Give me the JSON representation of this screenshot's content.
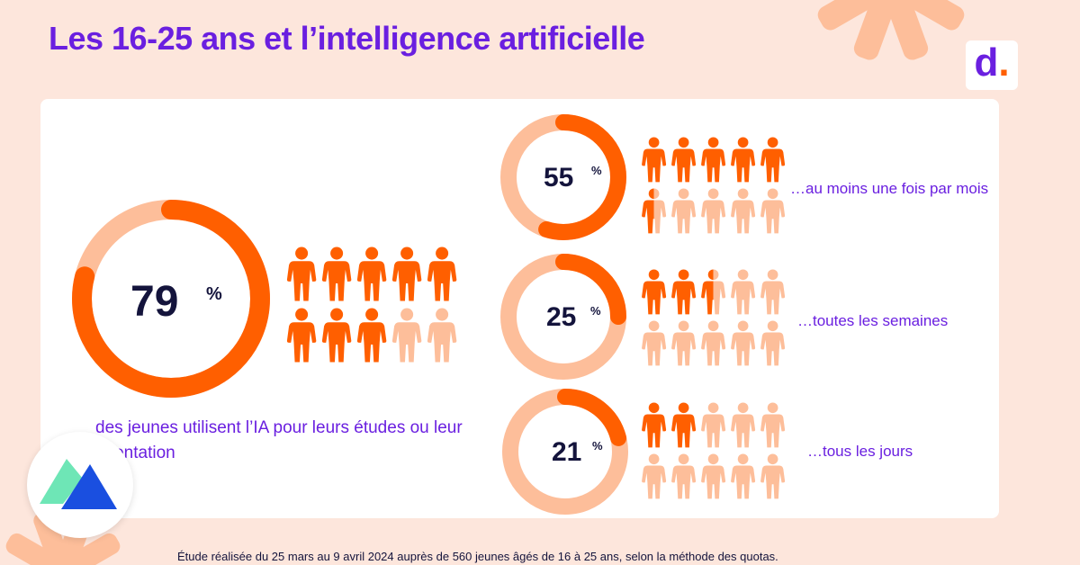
{
  "title": "Les 16-25 ans et l’intelligence artificielle",
  "brand": {
    "letter": "d",
    "dot": "."
  },
  "colors": {
    "accent": "#ff5f00",
    "light": "#fdbe9a",
    "purple": "#6a1fe0",
    "navy": "#14143c",
    "background": "#fde6dc"
  },
  "main_stat": {
    "value": "79",
    "unit": "%",
    "fraction": 0.79,
    "figures_total": 10,
    "figures_filled": 8,
    "caption": "des jeunes utilisent l’IA  pour leurs études ou leur orientation"
  },
  "sub_stats": [
    {
      "value": "55",
      "unit": "%",
      "fraction": 0.55,
      "filled": 5.5,
      "label": "…au moins une fois par mois"
    },
    {
      "value": "25",
      "unit": "%",
      "fraction": 0.25,
      "filled": 2.5,
      "label": "…toutes les semaines"
    },
    {
      "value": "21",
      "unit": "%",
      "fraction": 0.21,
      "filled": 2,
      "label": "…tous les jours"
    }
  ],
  "footer": "Étude réalisée du 25 mars au 9 avril 2024 auprès de 560 jeunes âgés de 16 à 25 ans, selon la méthode des quotas.",
  "icons": {
    "badge": "triangle-logo-icon",
    "person": "person-icon"
  }
}
